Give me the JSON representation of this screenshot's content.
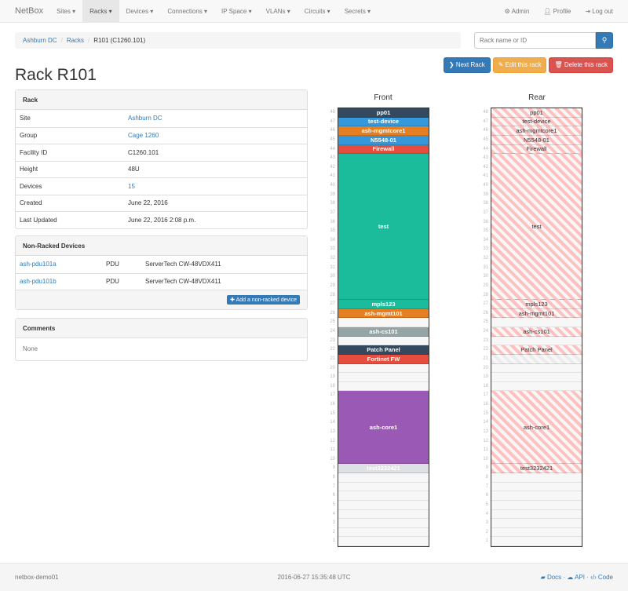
{
  "nav": {
    "brand": "NetBox",
    "items": [
      "Sites",
      "Racks",
      "Devices",
      "Connections",
      "IP Space",
      "VLANs",
      "Circuits",
      "Secrets"
    ],
    "active": "Racks",
    "admin": "Admin",
    "profile": "Profile",
    "logout": "Log out"
  },
  "breadcrumb": [
    "Ashburn DC",
    "Racks",
    "R101 (C1260.101)"
  ],
  "search": {
    "placeholder": "Rack name or ID"
  },
  "buttons": {
    "next": "Next Rack",
    "edit": "Edit this rack",
    "delete": "Delete this rack"
  },
  "title": "Rack R101",
  "rack_panel": {
    "heading": "Rack",
    "rows": [
      {
        "label": "Site",
        "value": "Ashburn DC",
        "link": true
      },
      {
        "label": "Group",
        "value": "Cage 1260",
        "link": true
      },
      {
        "label": "Facility ID",
        "value": "C1260.101",
        "link": false
      },
      {
        "label": "Height",
        "value": "48U",
        "link": false
      },
      {
        "label": "Devices",
        "value": "15",
        "link": true
      },
      {
        "label": "Created",
        "value": "June 22, 2016",
        "link": false
      },
      {
        "label": "Last Updated",
        "value": "June 22, 2016 2:08 p.m.",
        "link": false
      }
    ]
  },
  "nonracked": {
    "heading": "Non-Racked Devices",
    "rows": [
      {
        "name": "ash-pdu101a",
        "role": "PDU",
        "type": "ServerTech CW-48VDX411"
      },
      {
        "name": "ash-pdu101b",
        "role": "PDU",
        "type": "ServerTech CW-48VDX411"
      }
    ],
    "add": "Add a non-racked device"
  },
  "comments": {
    "heading": "Comments",
    "body": "None"
  },
  "elevation": {
    "front_label": "Front",
    "rear_label": "Rear",
    "units": 48,
    "devices": [
      {
        "name": "pp01",
        "top": 48,
        "height": 1,
        "color": "#34495e",
        "rear": true
      },
      {
        "name": "test-device",
        "top": 47,
        "height": 1,
        "color": "#3498db",
        "rear": true
      },
      {
        "name": "ash-mgmtcore1",
        "top": 46,
        "height": 1,
        "color": "#e67e22",
        "rear": true
      },
      {
        "name": "N5548-01",
        "top": 45,
        "height": 1,
        "color": "#3498db",
        "rear": true
      },
      {
        "name": "Firewall",
        "top": 44,
        "height": 1,
        "color": "#e74c3c",
        "rear": true
      },
      {
        "name": "test",
        "top": 43,
        "height": 16,
        "color": "#1abc9c",
        "rear": true
      },
      {
        "name": "mpls123",
        "top": 27,
        "height": 1,
        "color": "#1abc9c",
        "rear": true
      },
      {
        "name": "ash-mgmt101",
        "top": 26,
        "height": 1,
        "color": "#e67e22",
        "rear": true
      },
      {
        "name": "ash-cs101",
        "top": 24,
        "height": 1,
        "color": "#95a5a6",
        "rear": true
      },
      {
        "name": "Patch Panel",
        "top": 22,
        "height": 1,
        "color": "#34495e",
        "rear": true
      },
      {
        "name": "Fortinet FW",
        "top": 21,
        "height": 1,
        "color": "#e74c3c",
        "rear": false
      },
      {
        "name": "ash-core1",
        "top": 17,
        "height": 8,
        "color": "#9b59b6",
        "rear": true
      },
      {
        "name": "test3232421",
        "top": 9,
        "height": 1,
        "color": "#dde1e4",
        "rear": true
      }
    ]
  },
  "footer": {
    "host": "netbox-demo01",
    "time": "2016-06-27 15:35:48 UTC",
    "docs": "Docs",
    "api": "API",
    "code": "Code"
  }
}
